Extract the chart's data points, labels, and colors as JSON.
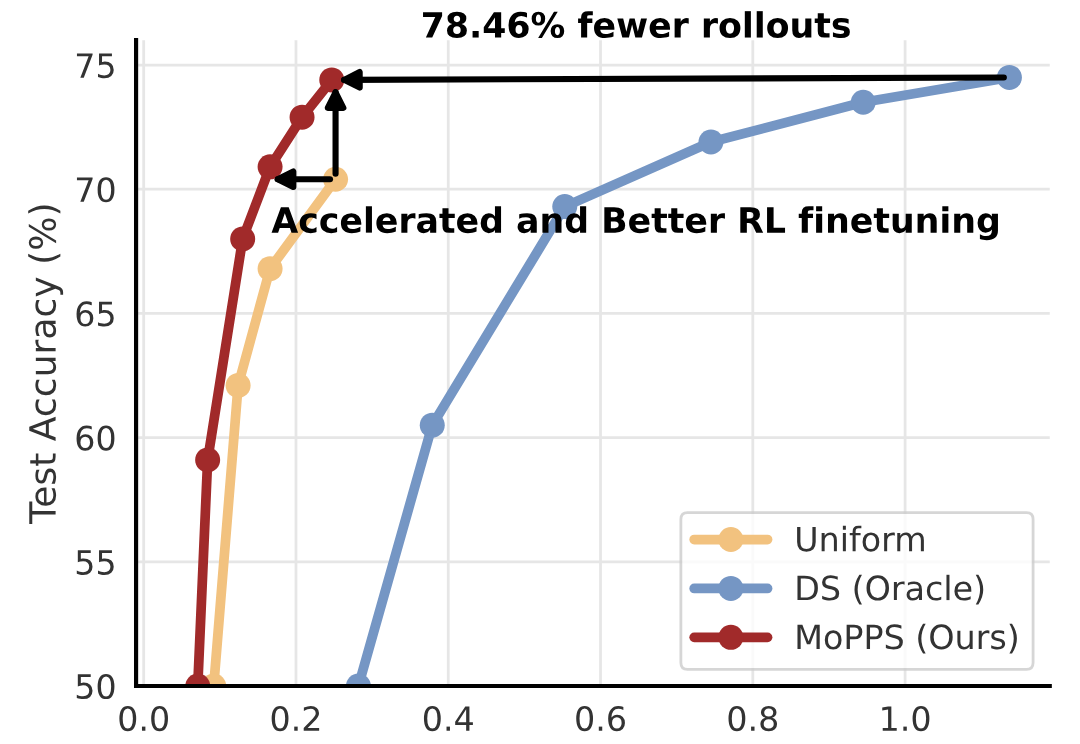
{
  "chart_data": {
    "type": "line",
    "ylabel": "Test Accuracy (%)",
    "xlim": [
      -0.01,
      1.19
    ],
    "xticks": [
      {
        "value": 0.0,
        "label": "0.0"
      },
      {
        "value": 0.2,
        "label": "0.2"
      },
      {
        "value": 0.4,
        "label": "0.4"
      },
      {
        "value": 0.6,
        "label": "0.6"
      },
      {
        "value": 0.8,
        "label": "0.8"
      },
      {
        "value": 1.0,
        "label": "1.0"
      }
    ],
    "ylim": [
      50,
      76
    ],
    "yticks": [
      50,
      55,
      60,
      65,
      70,
      75
    ],
    "grid": true,
    "legend": "bottom right",
    "marker": "circle",
    "line_style": "solid",
    "series": [
      {
        "name": "Uniform",
        "color": "#f2c27f",
        "x": [
          0.092,
          0.124,
          0.166,
          0.252
        ],
        "values": [
          50,
          62.1,
          66.8,
          70.4
        ]
      },
      {
        "name": "DS (Oracle)",
        "color": "#7596c4",
        "x": [
          0.282,
          0.379,
          0.553,
          0.745,
          0.945,
          1.137
        ],
        "values": [
          50,
          60.5,
          69.3,
          71.9,
          73.5,
          74.5
        ]
      },
      {
        "name": "MoPPS (Ours)",
        "color": "#a12a2a",
        "x": [
          0.071,
          0.084,
          0.13,
          0.166,
          0.208,
          0.247
        ],
        "values": [
          50,
          59.1,
          68.0,
          70.9,
          72.9,
          74.4
        ]
      }
    ],
    "annotations": [
      "78.46% fewer rollouts",
      {
        "text": "Accelerated and Better RL finetuning",
        "x": 0.252,
        "y": 70.4
      }
    ]
  }
}
